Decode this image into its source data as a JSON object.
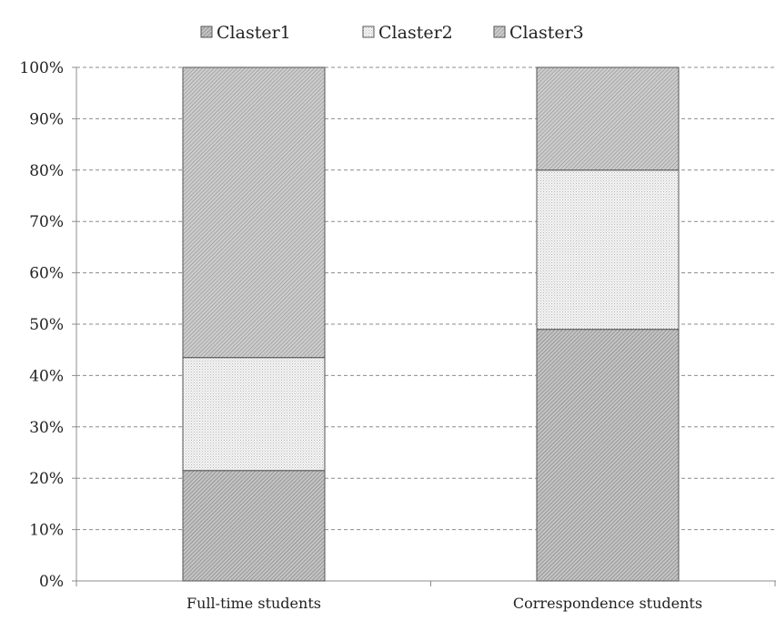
{
  "chart_data": {
    "type": "bar",
    "stacked": true,
    "normalized_percent": true,
    "categories": [
      "Full-time students",
      "Correspondence students"
    ],
    "series": [
      {
        "name": "Claster1",
        "values": [
          21.5,
          49
        ],
        "pattern": "dense-diagonal",
        "color": "#a9a9a9"
      },
      {
        "name": "Claster2",
        "values": [
          22,
          31
        ],
        "pattern": "fine-dots",
        "color": "#eeeeee"
      },
      {
        "name": "Claster3",
        "values": [
          56.5,
          20
        ],
        "pattern": "dense-diagonal",
        "color": "#b5b5b5"
      }
    ],
    "y_ticks": [
      "0%",
      "10%",
      "20%",
      "30%",
      "40%",
      "50%",
      "60%",
      "70%",
      "80%",
      "90%",
      "100%"
    ],
    "ylim": [
      0,
      100
    ],
    "grid": "horizontal-dashed",
    "legend_position": "top-center",
    "title": "",
    "xlabel": "",
    "ylabel": ""
  }
}
